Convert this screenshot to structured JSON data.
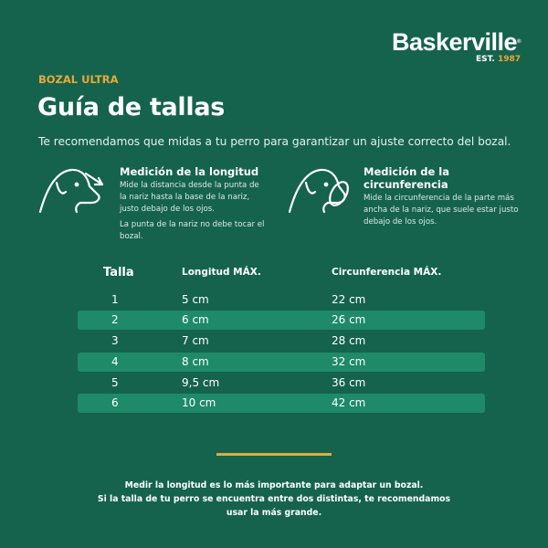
{
  "brand": {
    "name": "Baskerville",
    "registered": "®",
    "est_label": "EST.",
    "est_year": "1987"
  },
  "kicker": "BOZAL ULTRA",
  "title": "Guía de tallas",
  "intro": "Te recomendamos que midas a tu perro para garantizar un ajuste correcto del bozal.",
  "measures": [
    {
      "icon": "dog-head-length-arrow-icon",
      "title": "Medición de la longitud",
      "text": [
        "Mide la distancia desde la punta de la nariz hasta la base de la nariz, justo debajo de los ojos.",
        "La punta de la nariz no debe tocar el bozal."
      ]
    },
    {
      "icon": "dog-head-circumference-loop-icon",
      "title": "Medición de la circunferencia",
      "text": [
        "Mide la circunferencia de la parte más ancha de la nariz, que suele estar justo debajo de los ojos."
      ]
    }
  ],
  "table": {
    "headers": [
      "Talla",
      "Longitud MÁX.",
      "Circunferencia MÁX."
    ],
    "rows": [
      [
        "1",
        "5 cm",
        "22 cm"
      ],
      [
        "2",
        "6 cm",
        "26 cm"
      ],
      [
        "3",
        "7 cm",
        "28 cm"
      ],
      [
        "4",
        "8 cm",
        "32 cm"
      ],
      [
        "5",
        "9,5 cm",
        "36 cm"
      ],
      [
        "6",
        "10 cm",
        "42 cm"
      ]
    ]
  },
  "footer": [
    "Medir la longitud es lo más importante para adaptar un bozal.",
    "Si la talla de tu perro se encuentra entre dos distintas, te recomendamos",
    "usar la más grande."
  ],
  "colors": {
    "background": "#15634d",
    "stripe": "#1e8a68",
    "accent": "#e8a83a"
  }
}
